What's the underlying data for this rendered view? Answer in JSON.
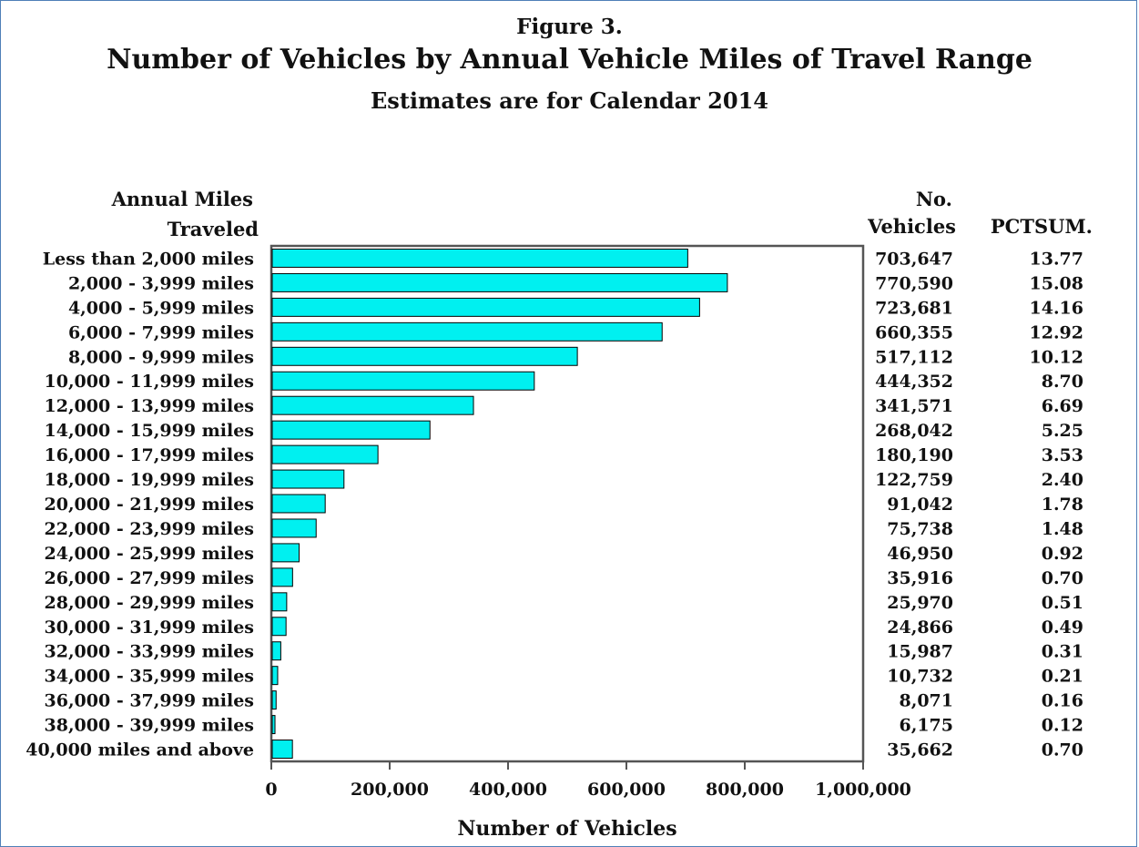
{
  "figure_label": "Figure 3.",
  "chart_data": {
    "type": "bar",
    "orientation": "horizontal",
    "title": "Number of Vehicles by Annual Vehicle Miles of Travel Range",
    "subtitle": "Estimates are for Calendar 2014",
    "ylabel": "Annual Miles Traveled",
    "ylabel_lines": [
      "Annual Miles",
      "Traveled"
    ],
    "xlabel": "Number of Vehicles",
    "xlim": [
      0,
      1000000
    ],
    "xticks": [
      "0",
      "200,000",
      "400,000",
      "600,000",
      "800,000",
      "1,000,000"
    ],
    "xtick_values": [
      0,
      200000,
      400000,
      600000,
      800000,
      1000000
    ],
    "bar_color": "#00f0f0",
    "vehicles_header": [
      "No.",
      "Vehicles"
    ],
    "pct_header": "PCTSUM.",
    "categories": [
      "Less than 2,000 miles",
      "2,000 - 3,999 miles",
      "4,000 - 5,999 miles",
      "6,000 - 7,999 miles",
      "8,000 - 9,999 miles",
      "10,000 - 11,999 miles",
      "12,000 - 13,999 miles",
      "14,000 - 15,999 miles",
      "16,000 - 17,999 miles",
      "18,000 - 19,999 miles",
      "20,000 - 21,999 miles",
      "22,000 - 23,999 miles",
      "24,000 - 25,999 miles",
      "26,000 - 27,999 miles",
      "28,000 - 29,999 miles",
      "30,000 - 31,999 miles",
      "32,000 - 33,999 miles",
      "34,000 - 35,999 miles",
      "36,000 - 37,999 miles",
      "38,000 - 39,999 miles",
      "40,000 miles and above"
    ],
    "values": [
      703647,
      770590,
      723681,
      660355,
      517112,
      444352,
      341571,
      268042,
      180190,
      122759,
      91042,
      75738,
      46950,
      35916,
      25970,
      24866,
      15987,
      10732,
      8071,
      6175,
      35662
    ],
    "value_labels": [
      "703,647",
      "770,590",
      "723,681",
      "660,355",
      "517,112",
      "444,352",
      "341,571",
      "268,042",
      "180,190",
      "122,759",
      "91,042",
      "75,738",
      "46,950",
      "35,916",
      "25,970",
      "24,866",
      "15,987",
      "10,732",
      "8,071",
      "6,175",
      "35,662"
    ],
    "pctsum": [
      "13.77",
      "15.08",
      "14.16",
      "12.92",
      "10.12",
      "8.70",
      "6.69",
      "5.25",
      "3.53",
      "2.40",
      "1.78",
      "1.48",
      "0.92",
      "0.70",
      "0.51",
      "0.49",
      "0.31",
      "0.21",
      "0.16",
      "0.12",
      "0.70"
    ]
  }
}
